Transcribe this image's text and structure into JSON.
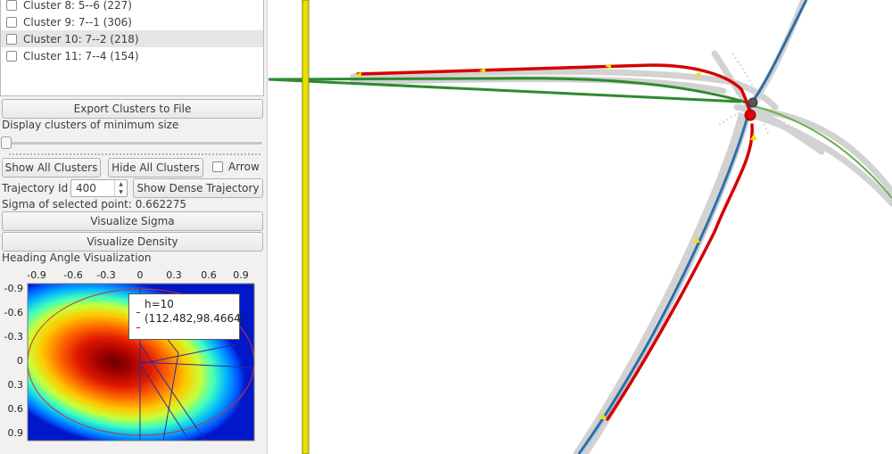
{
  "cluster_list": {
    "items": [
      {
        "label": "Cluster 8: 5--6 (227)",
        "checked": false,
        "selected": false
      },
      {
        "label": "Cluster 9: 7--1 (306)",
        "checked": false,
        "selected": false
      },
      {
        "label": "Cluster 10: 7--2 (218)",
        "checked": false,
        "selected": true
      },
      {
        "label": "Cluster 11: 7--4 (154)",
        "checked": false,
        "selected": false
      }
    ]
  },
  "controls": {
    "export_label": "Export Clusters to File",
    "min_size_label": "Display clusters of minimum size",
    "min_size_value": 0,
    "show_all_label": "Show All Clusters",
    "hide_all_label": "Hide All Clusters",
    "arrow_label": "Arrow",
    "arrow_checked": false,
    "traj_id_label": "Trajectory Id",
    "traj_id_value": "400",
    "show_dense_label": "Show Dense Trajectory",
    "sigma_label": "Sigma of selected point: 0.662275",
    "visualize_sigma_label": "Visualize Sigma",
    "visualize_density_label": "Visualize Density",
    "heading_label": "Heading Angle Visualization"
  },
  "heatmap": {
    "x_ticks": [
      "-0.9",
      "-0.6",
      "-0.3",
      "0",
      "0.3",
      "0.6",
      "0.9"
    ],
    "y_ticks": [
      "-0.9",
      "-0.6",
      "-0.3",
      "0",
      "0.3",
      "0.6",
      "0.9"
    ],
    "tooltip_line1": "h=10",
    "tooltip_line2": "(112.482,98.4664)",
    "colormap": "jet",
    "colors": {
      "ellipse": "#c83232",
      "lines": "#2a2aa0"
    }
  },
  "map": {
    "colors": {
      "axis_line": "#e8e000",
      "axis_edge": "#8a8400",
      "trajectory_cloud": "#c8c8c8",
      "road_green": "#2f8a2f",
      "road_blue": "#2e6da4",
      "red_cluster": "#d40000",
      "arrow_yellow": "#f0e000",
      "node_gray": "#555555",
      "node_red": "#e00000"
    }
  }
}
